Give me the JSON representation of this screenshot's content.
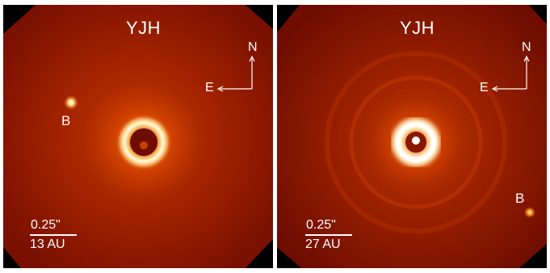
{
  "panels": [
    {
      "band": "YJH",
      "companion_label": "B",
      "compass": {
        "north": "N",
        "east": "E"
      },
      "scale": {
        "angular": "0.25\"",
        "physical": "13 AU"
      }
    },
    {
      "band": "YJH",
      "companion_label": "B",
      "compass": {
        "north": "N",
        "east": "E"
      },
      "scale": {
        "angular": "0.25\"",
        "physical": "27 AU"
      }
    }
  ],
  "colors": {
    "background": "#ffffff",
    "sky": "#6e0d00",
    "field": "#a82600",
    "glow": "#ff9a2a",
    "ring": "#ffffe8",
    "annotation": "#ffffff"
  }
}
